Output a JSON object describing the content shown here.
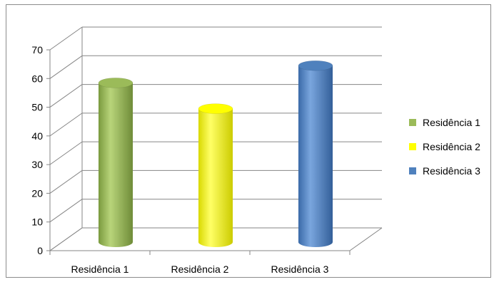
{
  "chart_data": {
    "type": "bar",
    "style": "3d-cylinder",
    "categories": [
      "Residência 1",
      "Residência 2",
      "Residência 3"
    ],
    "series": [
      {
        "values": [
          57,
          48,
          63
        ]
      }
    ],
    "bar_colors": [
      "#9bbb59",
      "#ffff00",
      "#4f81bd"
    ],
    "legend": {
      "position": "right",
      "entries": [
        "Residência 1",
        "Residência 2",
        "Residência 3"
      ],
      "colors": [
        "#9bbb59",
        "#ffff00",
        "#4f81bd"
      ]
    },
    "yticks": [
      0,
      10,
      20,
      30,
      40,
      50,
      60,
      70
    ],
    "ylim": [
      0,
      70
    ],
    "grid": true,
    "title": "",
    "xlabel": "",
    "ylabel": ""
  }
}
